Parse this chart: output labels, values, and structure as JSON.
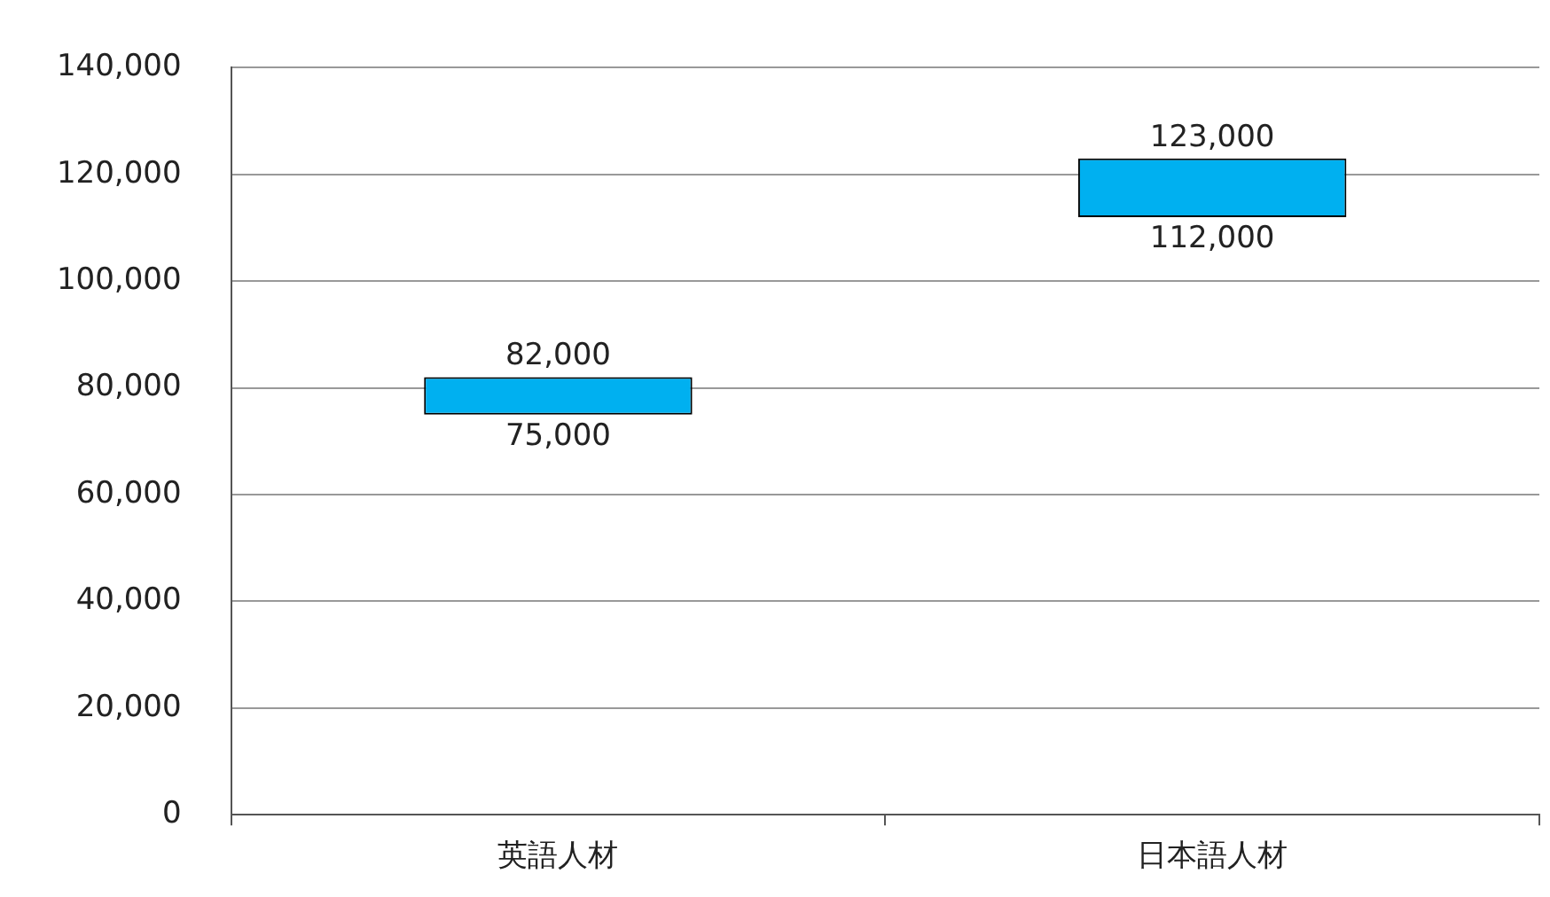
{
  "chart_data": {
    "type": "bar",
    "categories": [
      "英語人材",
      "日本語人材"
    ],
    "values": [
      7000,
      11000
    ],
    "base": [
      75000,
      112000
    ],
    "color": "#00b0f0",
    "ylim": [
      0,
      140000
    ],
    "yticks": [
      {
        "value": 0,
        "label": "0"
      },
      {
        "value": 20000,
        "label": "20,000"
      },
      {
        "value": 40000,
        "label": "40,000"
      },
      {
        "value": 60000,
        "label": "60,000"
      },
      {
        "value": 80000,
        "label": "80,000"
      },
      {
        "value": 100000,
        "label": "100,000"
      },
      {
        "value": 120000,
        "label": "120,000"
      },
      {
        "value": 140000,
        "label": "140,000"
      }
    ],
    "grid": "y",
    "annotations": [
      {
        "text": "82,000",
        "x": "英語人材",
        "y": 82000
      },
      {
        "text": "75,000",
        "x": "英語人材",
        "y": 75000
      },
      {
        "text": "123,000",
        "x": "日本語人材",
        "y": 123000
      },
      {
        "text": "112,000",
        "x": "日本語人材",
        "y": 112000
      }
    ]
  }
}
